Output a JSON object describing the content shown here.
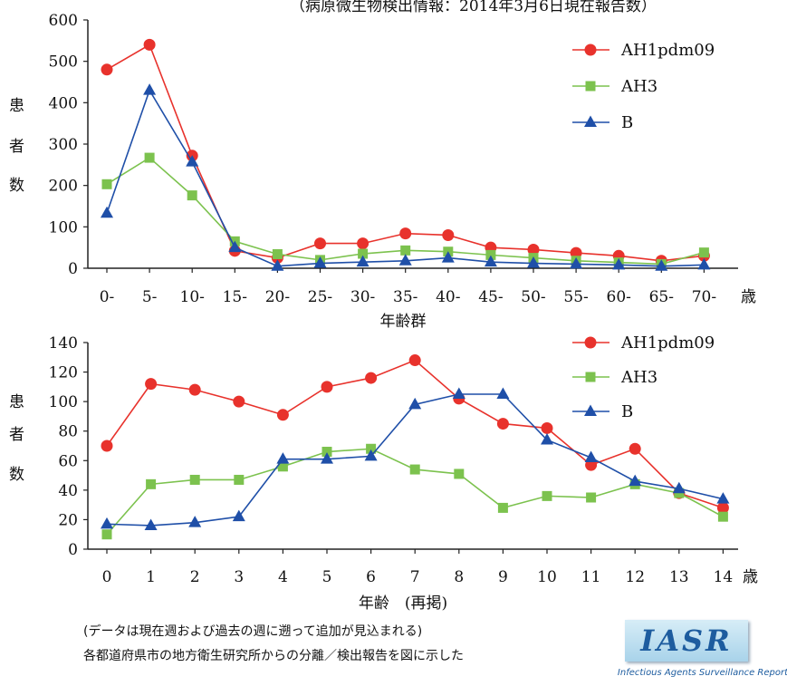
{
  "header_note": "（病原微生物検出情報：2014年3月6日現在報告数）",
  "footnotes": [
    "(データは現在週および過去の週に遡って追加が見込まれる)",
    "各都道府県市の地方衛生研究所からの分離／検出報告を図に示した"
  ],
  "logo": {
    "text": "IASR",
    "subtitle": "Infectious Agents Surveillance Report"
  },
  "colors": {
    "AH1pdm09": "#e8322c",
    "AH3": "#7cc24e",
    "B": "#1f4fa8"
  },
  "chart_data": [
    {
      "type": "line",
      "title": "",
      "xlabel": "年齢群",
      "x_unit_label": "歳",
      "ylabel": "患者数",
      "ylim": [
        0,
        600
      ],
      "yticks": [
        0,
        100,
        200,
        300,
        400,
        500,
        600
      ],
      "grid": false,
      "legend": "top-right",
      "categories": [
        "0-",
        "5-",
        "10-",
        "15-",
        "20-",
        "25-",
        "30-",
        "35-",
        "40-",
        "45-",
        "50-",
        "55-",
        "60-",
        "65-",
        "70-"
      ],
      "series": [
        {
          "name": "AH1pdm09",
          "marker": "circle",
          "color": "#e8322c",
          "values": [
            480,
            540,
            272,
            42,
            25,
            60,
            60,
            84,
            80,
            50,
            45,
            37,
            30,
            18,
            30
          ]
        },
        {
          "name": "AH3",
          "marker": "square",
          "color": "#7cc24e",
          "values": [
            203,
            267,
            176,
            65,
            34,
            20,
            35,
            43,
            40,
            32,
            25,
            18,
            14,
            10,
            38
          ]
        },
        {
          "name": "B",
          "marker": "triangle",
          "color": "#1f4fa8",
          "values": [
            133,
            430,
            257,
            50,
            5,
            12,
            15,
            18,
            25,
            15,
            12,
            10,
            8,
            5,
            8
          ]
        }
      ]
    },
    {
      "type": "line",
      "title": "",
      "xlabel": "年齢　(再掲)",
      "x_unit_label": "歳",
      "ylabel": "患者数",
      "ylim": [
        0,
        140
      ],
      "yticks": [
        0,
        20,
        40,
        60,
        80,
        100,
        120,
        140
      ],
      "grid": false,
      "legend": "top-right",
      "categories": [
        "0",
        "1",
        "2",
        "3",
        "4",
        "5",
        "6",
        "7",
        "8",
        "9",
        "10",
        "11",
        "12",
        "13",
        "14"
      ],
      "series": [
        {
          "name": "AH1pdm09",
          "marker": "circle",
          "color": "#e8322c",
          "values": [
            70,
            112,
            108,
            100,
            91,
            110,
            116,
            128,
            102,
            85,
            82,
            57,
            68,
            38,
            28
          ]
        },
        {
          "name": "AH3",
          "marker": "square",
          "color": "#7cc24e",
          "values": [
            10,
            44,
            47,
            47,
            56,
            66,
            68,
            54,
            51,
            28,
            36,
            35,
            44,
            38,
            22
          ]
        },
        {
          "name": "B",
          "marker": "triangle",
          "color": "#1f4fa8",
          "values": [
            17,
            16,
            18,
            22,
            61,
            61,
            63,
            98,
            105,
            105,
            74,
            62,
            46,
            41,
            34
          ]
        }
      ]
    }
  ]
}
